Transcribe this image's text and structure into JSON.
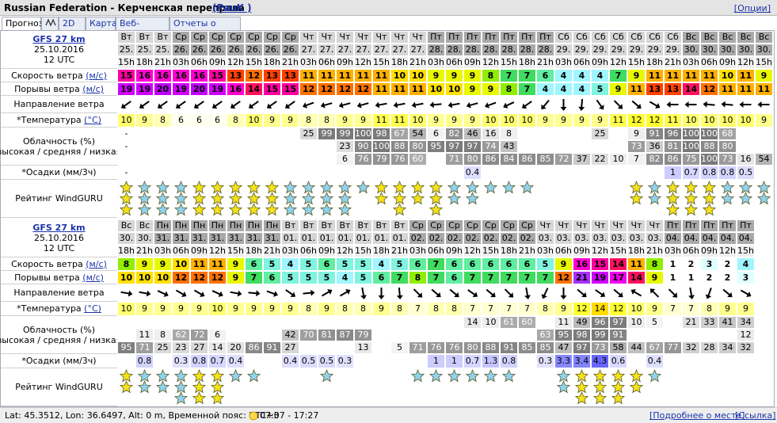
{
  "header": {
    "title": "Russian Federation - Керченская переправа",
    "author": "(PauK )",
    "options": "[Опции]"
  },
  "tabs": [
    "Прогноз",
    "2D",
    "Карта",
    "Веб-камеры",
    "Отчеты о ветре"
  ],
  "row_labels": {
    "wind": "Скорость ветра",
    "wind_unit": "(м/с)",
    "gusts": "Порывы ветра",
    "gusts_unit": "(м/с)",
    "direction": "Направление ветра",
    "temperature": "*Температура",
    "temperature_unit": "(°C)",
    "clouds": "Облачность (%)",
    "clouds_levels": "высокая / средняя / низкая",
    "precip": "*Осадки (мм/3ч)",
    "rating": "Рейтинг WindGURU"
  },
  "palettes": {
    "wind": [
      "#ffffff",
      "#ffffff",
      "#ffffff",
      "#e0ffff",
      "#a0f6ff",
      "#80f4e0",
      "#60eea0",
      "#40dc60",
      "#90ee00",
      "#e8f800",
      "#ffe000",
      "#ffb000",
      "#ff7000",
      "#ff4000",
      "#ff1060",
      "#ff00a0",
      "#ff00d0",
      "#f000f0",
      "#e000ff",
      "#d000ff",
      "#c000ff",
      "#a830ff"
    ],
    "temperature": {
      "6": "#ffffee",
      "7": "#ffffd0",
      "8": "#ffffb0",
      "9": "#ffff90",
      "10": "#ffff70",
      "11": "#ffff50",
      "12": "#ffff30",
      "13": "#ffee00",
      "14": "#ffdd00"
    }
  },
  "forecasts": [
    {
      "model": "GFS 27 km",
      "date": "25.10.2016",
      "run": "12 UTC",
      "days": [
        "Вт",
        "Вт",
        "Вт",
        "Ср",
        "Ср",
        "Ср",
        "Ср",
        "Ср",
        "Ср",
        "Ср",
        "Чт",
        "Чт",
        "Чт",
        "Чт",
        "Чт",
        "Чт",
        "Чт",
        "Пт",
        "Пт",
        "Пт",
        "Пт",
        "Пт",
        "Пт",
        "Пт",
        "Сб",
        "Сб",
        "Сб",
        "Сб",
        "Сб",
        "Сб",
        "Сб",
        "Вс",
        "Вс",
        "Вс",
        "Вс",
        "Вс"
      ],
      "dates": [
        "25.",
        "25.",
        "25.",
        "26.",
        "26.",
        "26.",
        "26.",
        "26.",
        "26.",
        "26.",
        "27.",
        "27.",
        "27.",
        "27.",
        "27.",
        "27.",
        "27.",
        "28.",
        "28.",
        "28.",
        "28.",
        "28.",
        "28.",
        "28.",
        "29.",
        "29.",
        "29.",
        "29.",
        "29.",
        "29.",
        "29.",
        "30.",
        "30.",
        "30.",
        "30.",
        "30."
      ],
      "hours": [
        "15h",
        "18h",
        "21h",
        "03h",
        "06h",
        "09h",
        "12h",
        "15h",
        "18h",
        "21h",
        "03h",
        "06h",
        "09h",
        "12h",
        "15h",
        "18h",
        "21h",
        "03h",
        "06h",
        "09h",
        "12h",
        "15h",
        "18h",
        "21h",
        "03h",
        "06h",
        "09h",
        "12h",
        "15h",
        "18h",
        "21h",
        "03h",
        "06h",
        "09h",
        "12h",
        "15h"
      ],
      "wind": [
        15,
        16,
        16,
        16,
        16,
        15,
        13,
        12,
        13,
        13,
        11,
        11,
        11,
        11,
        11,
        10,
        10,
        9,
        9,
        9,
        8,
        7,
        7,
        6,
        4,
        4,
        4,
        7,
        9,
        11,
        11,
        11,
        11,
        10,
        11,
        9
      ],
      "gusts": [
        19,
        19,
        20,
        19,
        20,
        19,
        16,
        14,
        15,
        15,
        12,
        12,
        12,
        12,
        11,
        11,
        11,
        10,
        10,
        9,
        9,
        8,
        7,
        4,
        4,
        4,
        5,
        9,
        11,
        13,
        13,
        14,
        12,
        11,
        11,
        11
      ],
      "direction": [
        235,
        235,
        235,
        235,
        235,
        235,
        235,
        235,
        235,
        235,
        250,
        255,
        255,
        255,
        260,
        260,
        260,
        265,
        260,
        255,
        250,
        245,
        235,
        220,
        180,
        185,
        145,
        135,
        130,
        120,
        270,
        270,
        275,
        275,
        270,
        270
      ],
      "temperature": [
        10,
        9,
        8,
        6,
        6,
        6,
        8,
        10,
        9,
        9,
        8,
        8,
        9,
        9,
        11,
        11,
        10,
        9,
        9,
        9,
        10,
        10,
        10,
        9,
        9,
        9,
        9,
        11,
        12,
        12,
        11,
        10,
        10,
        10,
        10,
        9
      ],
      "cloud_high": [
        "-",
        null,
        null,
        null,
        null,
        null,
        null,
        null,
        null,
        null,
        25,
        99,
        99,
        100,
        98,
        67,
        54,
        6,
        82,
        46,
        16,
        8,
        null,
        null,
        null,
        null,
        25,
        null,
        9,
        91,
        96,
        100,
        100,
        68,
        null,
        null
      ],
      "cloud_mid": [
        "-",
        null,
        null,
        null,
        null,
        null,
        null,
        null,
        null,
        null,
        null,
        null,
        23,
        90,
        100,
        88,
        80,
        95,
        97,
        97,
        74,
        43,
        null,
        null,
        null,
        null,
        null,
        null,
        73,
        36,
        81,
        100,
        88,
        80,
        null,
        null
      ],
      "cloud_low": [
        null,
        null,
        null,
        null,
        null,
        null,
        null,
        null,
        null,
        null,
        null,
        null,
        6,
        76,
        79,
        76,
        60,
        null,
        71,
        80,
        86,
        84,
        86,
        85,
        72,
        37,
        22,
        10,
        7,
        82,
        86,
        75,
        100,
        73,
        16,
        54
      ],
      "precip": [
        "-",
        null,
        null,
        null,
        null,
        null,
        null,
        null,
        null,
        null,
        null,
        null,
        null,
        null,
        null,
        null,
        null,
        null,
        null,
        0.4,
        null,
        null,
        null,
        null,
        null,
        null,
        null,
        null,
        null,
        null,
        1,
        0.7,
        0.8,
        0.8,
        0.5,
        null
      ],
      "stars": [
        3,
        3,
        3,
        3,
        3,
        3,
        3,
        3,
        3,
        3,
        3,
        3,
        3,
        1,
        2,
        3,
        2,
        3,
        2,
        2,
        1,
        1,
        1,
        0,
        0,
        0,
        0,
        0,
        2,
        2,
        3,
        3,
        3,
        2,
        2,
        2
      ],
      "star_colors": [
        "#f4e21a",
        "#8fd3ef",
        "#8fd3ef",
        "#8fd3ef",
        "#f4e21a",
        "#f4e21a",
        "#f4e21a",
        "#f4e21a",
        "#f4e21a",
        "#8fd3ef",
        "#8fd3ef",
        "#8fd3ef",
        "#8fd3ef",
        "#8fd3ef",
        "#f4e21a",
        "#f4e21a",
        "#f4e21a",
        "#f4e21a",
        "#8fd3ef",
        "#8fd3ef",
        "#8fd3ef",
        "#8fd3ef",
        "#8fd3ef",
        null,
        null,
        null,
        null,
        null,
        "#f4e21a",
        "#8fd3ef",
        "#f4e21a",
        "#f4e21a",
        "#f4e21a",
        "#8fd3ef",
        "#8fd3ef",
        "#8fd3ef"
      ]
    },
    {
      "model": "GFS 27 km",
      "date": "25.10.2016",
      "run": "12 UTC",
      "days": [
        "Вс",
        "Вс",
        "Пн",
        "Пн",
        "Пн",
        "Пн",
        "Пн",
        "Пн",
        "Пн",
        "Вт",
        "Вт",
        "Вт",
        "Вт",
        "Вт",
        "Вт",
        "Вт",
        "Ср",
        "Ср",
        "Ср",
        "Ср",
        "Ср",
        "Ср",
        "Ср",
        "Чт",
        "Чт",
        "Чт",
        "Чт",
        "Чт",
        "Чт",
        "Чт",
        "Пт",
        "Пт",
        "Пт",
        "Пт",
        "Пт"
      ],
      "dates": [
        "30.",
        "30.",
        "31.",
        "31.",
        "31.",
        "31.",
        "31.",
        "31.",
        "31.",
        "01.",
        "01.",
        "01.",
        "01.",
        "01.",
        "01.",
        "01.",
        "02.",
        "02.",
        "02.",
        "02.",
        "02.",
        "02.",
        "02.",
        "03.",
        "03.",
        "03.",
        "03.",
        "03.",
        "03.",
        "03.",
        "04.",
        "04.",
        "04.",
        "04.",
        "04."
      ],
      "hours": [
        "18h",
        "21h",
        "03h",
        "06h",
        "09h",
        "12h",
        "15h",
        "18h",
        "21h",
        "03h",
        "06h",
        "09h",
        "12h",
        "15h",
        "18h",
        "21h",
        "03h",
        "06h",
        "09h",
        "12h",
        "15h",
        "18h",
        "21h",
        "03h",
        "06h",
        "09h",
        "12h",
        "15h",
        "18h",
        "21h",
        "03h",
        "06h",
        "09h",
        "12h",
        "15h"
      ],
      "wind": [
        8,
        9,
        9,
        10,
        11,
        11,
        9,
        6,
        5,
        4,
        5,
        6,
        5,
        5,
        4,
        5,
        6,
        7,
        6,
        6,
        6,
        6,
        6,
        5,
        9,
        16,
        15,
        14,
        11,
        8,
        1,
        2,
        3,
        2,
        4
      ],
      "gusts": [
        10,
        10,
        10,
        12,
        12,
        12,
        9,
        7,
        6,
        5,
        5,
        5,
        4,
        5,
        6,
        7,
        8,
        7,
        6,
        7,
        7,
        7,
        7,
        7,
        12,
        21,
        19,
        17,
        14,
        9,
        1,
        1,
        2,
        2,
        3
      ],
      "direction": [
        100,
        100,
        115,
        120,
        120,
        115,
        100,
        95,
        110,
        125,
        85,
        60,
        60,
        170,
        180,
        175,
        135,
        130,
        130,
        125,
        130,
        135,
        170,
        205,
        180,
        130,
        125,
        130,
        300,
        315,
        135,
        170,
        200,
        130,
        120
      ],
      "temperature": [
        10,
        9,
        9,
        9,
        9,
        10,
        9,
        9,
        9,
        9,
        8,
        9,
        8,
        8,
        9,
        8,
        7,
        8,
        8,
        7,
        7,
        7,
        7,
        8,
        9,
        12,
        14,
        12,
        10,
        9,
        7,
        7,
        8,
        9,
        9
      ],
      "cloud_high": [
        null,
        null,
        null,
        null,
        null,
        null,
        null,
        null,
        null,
        null,
        null,
        null,
        null,
        null,
        null,
        null,
        null,
        null,
        null,
        14,
        10,
        61,
        60,
        null,
        11,
        49,
        96,
        97,
        10,
        5,
        null,
        21,
        33,
        41,
        34
      ],
      "cloud_mid": [
        null,
        11,
        8,
        62,
        72,
        6,
        null,
        null,
        null,
        42,
        70,
        81,
        87,
        79,
        null,
        null,
        null,
        null,
        null,
        null,
        null,
        null,
        null,
        63,
        95,
        98,
        99,
        91,
        null,
        null,
        null,
        null,
        null,
        null,
        12
      ],
      "cloud_low": [
        95,
        71,
        25,
        23,
        27,
        14,
        20,
        86,
        91,
        27,
        null,
        null,
        null,
        13,
        null,
        5,
        71,
        76,
        76,
        80,
        88,
        91,
        85,
        85,
        47,
        97,
        73,
        58,
        44,
        67,
        77,
        32,
        28,
        34,
        32
      ],
      "precip": [
        null,
        0.8,
        null,
        0.3,
        0.8,
        0.7,
        0.4,
        null,
        null,
        0.4,
        0.5,
        0.5,
        0.3,
        null,
        null,
        null,
        null,
        1,
        1,
        0.7,
        1.3,
        0.8,
        null,
        0.3,
        3.3,
        3.4,
        4.3,
        0.6,
        null,
        0.4,
        null,
        null,
        null,
        null,
        null
      ],
      "stars": [
        2,
        2,
        2,
        3,
        3,
        3,
        1,
        1,
        0,
        0,
        0,
        1,
        0,
        0,
        0,
        0,
        1,
        1,
        1,
        1,
        1,
        1,
        0,
        0,
        2,
        3,
        3,
        3,
        2,
        1,
        0,
        0,
        0,
        0,
        0
      ],
      "star_colors": [
        "#f4e21a",
        "#8fd3ef",
        "#8fd3ef",
        "#8fd3ef",
        "#f4e21a",
        "#f4e21a",
        "#8fd3ef",
        "#8fd3ef",
        null,
        null,
        null,
        "#8fd3ef",
        null,
        null,
        null,
        null,
        "#8fd3ef",
        "#8fd3ef",
        "#8fd3ef",
        "#8fd3ef",
        "#8fd3ef",
        "#8fd3ef",
        null,
        null,
        "#8fd3ef",
        "#f4e21a",
        "#f4e21a",
        "#f4e21a",
        "#f4e21a",
        "#8fd3ef",
        null,
        null,
        null,
        null,
        null
      ]
    }
  ],
  "footer": {
    "location": "Lat: 45.3512, Lon: 36.6497, Alt: 0 m, Временной пояс: UTC+3",
    "sun": "07:07 - 17:27",
    "details": "[Подробнее о месте]",
    "link": "[Ссылка]"
  }
}
